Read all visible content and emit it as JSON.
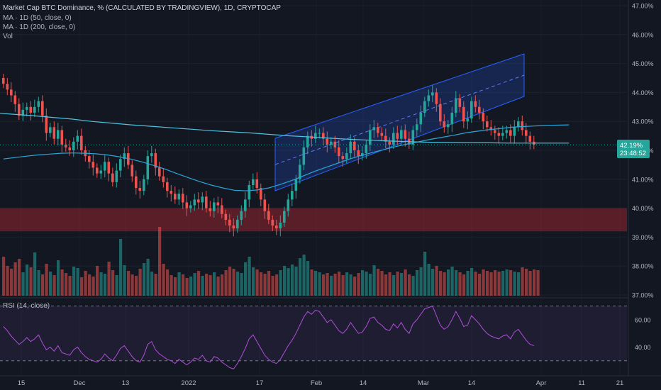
{
  "chart_data": {
    "type": "candlestick",
    "title": "Market Cap BTC Dominance, % (CALCULATED BY TRADINGVIEW), 1D, CRYPTOCAP",
    "indicators": [
      "MA · 1D (50, close, 0)",
      "MA · 1D (200, close, 0)",
      "Vol"
    ],
    "rsi_label": "RSI (14, close)",
    "price_axis": {
      "min": 37.0,
      "max": 47.0,
      "ticks": [
        "47.00%",
        "46.00%",
        "45.00%",
        "44.00%",
        "43.00%",
        "42.00%",
        "41.00%",
        "40.00%",
        "39.00%",
        "38.00%",
        "37.00%"
      ]
    },
    "rsi_axis": {
      "ticks": [
        "60.00",
        "40.00"
      ],
      "upper_band": 70,
      "lower_band": 30,
      "range": [
        20,
        75
      ]
    },
    "time_axis": [
      "15",
      "Dec",
      "13",
      "2022",
      "17",
      "Feb",
      "14",
      "Mar",
      "14",
      "Apr",
      "11",
      "21"
    ],
    "last_price": {
      "value": "42.19%",
      "countdown": "23:48:52"
    },
    "resistance_zone": [
      39.2,
      40.0
    ],
    "close_series": [
      44.3,
      44.1,
      43.9,
      43.6,
      43.2,
      43.4,
      43.5,
      43.3,
      43.5,
      43.7,
      43.2,
      42.6,
      42.8,
      42.4,
      42.7,
      42.2,
      42.1,
      42.0,
      42.3,
      42.5,
      42.0,
      41.8,
      41.6,
      41.4,
      41.2,
      41.3,
      41.6,
      41.2,
      40.9,
      41.3,
      41.7,
      41.9,
      41.5,
      41.1,
      40.7,
      40.6,
      41.0,
      41.8,
      41.9,
      41.4,
      41.1,
      40.9,
      40.6,
      40.5,
      40.3,
      40.5,
      40.2,
      40.0,
      40.1,
      40.3,
      40.2,
      40.4,
      40.0,
      39.9,
      40.2,
      40.1,
      39.8,
      39.6,
      39.4,
      39.3,
      39.6,
      39.9,
      40.3,
      40.8,
      41.0,
      40.7,
      40.3,
      39.9,
      39.6,
      39.4,
      39.3,
      39.5,
      39.9,
      40.3,
      40.6,
      41.0,
      41.5,
      42.1,
      42.5,
      42.4,
      42.6,
      42.6,
      42.4,
      42.2,
      42.3,
      42.1,
      41.8,
      41.7,
      41.9,
      42.3,
      42.0,
      41.8,
      41.9,
      42.2,
      42.7,
      42.8,
      42.6,
      42.5,
      42.3,
      42.2,
      42.6,
      42.4,
      42.7,
      42.4,
      42.2,
      42.7,
      42.9,
      43.3,
      43.7,
      43.9,
      44.0,
      43.6,
      43.0,
      42.8,
      42.9,
      43.3,
      43.8,
      43.5,
      43.0,
      43.1,
      43.7,
      43.5,
      43.3,
      43.0,
      42.8,
      42.7,
      42.6,
      42.5,
      42.6,
      42.7,
      42.5,
      42.8,
      43.0,
      42.7,
      42.5,
      42.3,
      42.19
    ],
    "ma50": [
      41.7,
      41.75,
      41.8,
      41.84,
      41.87,
      41.9,
      41.91,
      41.9,
      41.88,
      41.84,
      41.78,
      41.7,
      41.6,
      41.48,
      41.35,
      41.2,
      41.06,
      40.92,
      40.8,
      40.7,
      40.62,
      40.6,
      40.63,
      40.7,
      40.82,
      40.96,
      41.12,
      41.28,
      41.42,
      41.56,
      41.7,
      41.82,
      41.93,
      42.03,
      42.13,
      42.22,
      42.3,
      42.38,
      42.45,
      42.52,
      42.6,
      42.66,
      42.71,
      42.75,
      42.8,
      42.82,
      42.84,
      42.86,
      42.87,
      42.88
    ],
    "ma200": [
      43.3,
      43.3,
      43.25,
      43.2,
      43.14,
      43.08,
      43.0,
      42.94,
      42.88,
      42.83,
      42.78,
      42.73,
      42.68,
      42.64,
      42.6,
      42.55,
      42.5,
      42.46,
      42.42,
      42.38,
      42.35,
      42.32,
      42.3,
      42.28,
      42.27,
      42.26,
      42.26,
      42.25,
      42.25,
      42.25,
      42.25
    ],
    "volume": [
      0.55,
      0.42,
      0.38,
      0.47,
      0.52,
      0.33,
      0.44,
      0.4,
      0.61,
      0.36,
      0.3,
      0.45,
      0.34,
      0.29,
      0.5,
      0.37,
      0.32,
      0.28,
      0.41,
      0.39,
      0.26,
      0.35,
      0.3,
      0.27,
      0.42,
      0.33,
      0.31,
      0.48,
      0.36,
      0.29,
      0.8,
      0.43,
      0.35,
      0.3,
      0.28,
      0.38,
      0.46,
      0.52,
      0.34,
      0.31,
      0.97,
      0.45,
      0.37,
      0.29,
      0.26,
      0.33,
      0.3,
      0.25,
      0.27,
      0.32,
      0.35,
      0.28,
      0.31,
      0.29,
      0.33,
      0.27,
      0.3,
      0.36,
      0.41,
      0.38,
      0.34,
      0.32,
      0.47,
      0.55,
      0.4,
      0.37,
      0.33,
      0.31,
      0.35,
      0.28,
      0.3,
      0.36,
      0.42,
      0.39,
      0.44,
      0.41,
      0.53,
      0.58,
      0.49,
      0.37,
      0.35,
      0.33,
      0.3,
      0.32,
      0.28,
      0.31,
      0.34,
      0.29,
      0.33,
      0.3,
      0.27,
      0.32,
      0.36,
      0.34,
      0.31,
      0.43,
      0.38,
      0.35,
      0.3,
      0.33,
      0.29,
      0.34,
      0.32,
      0.37,
      0.3,
      0.28,
      0.36,
      0.4,
      0.62,
      0.45,
      0.38,
      0.42,
      0.35,
      0.33,
      0.37,
      0.41,
      0.36,
      0.33,
      0.3,
      0.35,
      0.39,
      0.34,
      0.31,
      0.37,
      0.35,
      0.33,
      0.36,
      0.34,
      0.35,
      0.37,
      0.36,
      0.34,
      0.33,
      0.4,
      0.38,
      0.35,
      0.37,
      0.36
    ],
    "rsi": [
      55,
      52,
      48,
      45,
      42,
      44,
      47,
      44,
      46,
      49,
      43,
      38,
      40,
      37,
      41,
      36,
      35,
      34,
      38,
      40,
      36,
      33,
      31,
      30,
      29,
      31,
      35,
      32,
      30,
      34,
      39,
      41,
      37,
      33,
      30,
      29,
      34,
      42,
      44,
      38,
      35,
      33,
      31,
      30,
      28,
      31,
      29,
      27,
      29,
      32,
      31,
      34,
      30,
      29,
      33,
      32,
      29,
      27,
      25,
      24,
      28,
      33,
      39,
      46,
      49,
      44,
      39,
      34,
      31,
      29,
      28,
      31,
      36,
      41,
      45,
      50,
      56,
      62,
      66,
      64,
      67,
      66,
      62,
      58,
      60,
      56,
      52,
      50,
      53,
      58,
      54,
      50,
      51,
      55,
      61,
      62,
      58,
      56,
      53,
      52,
      57,
      54,
      58,
      53,
      50,
      57,
      60,
      64,
      68,
      69,
      70,
      63,
      56,
      53,
      55,
      60,
      66,
      61,
      55,
      56,
      63,
      60,
      57,
      53,
      50,
      48,
      47,
      46,
      48,
      49,
      46,
      51,
      53,
      49,
      45,
      42,
      41
    ]
  }
}
